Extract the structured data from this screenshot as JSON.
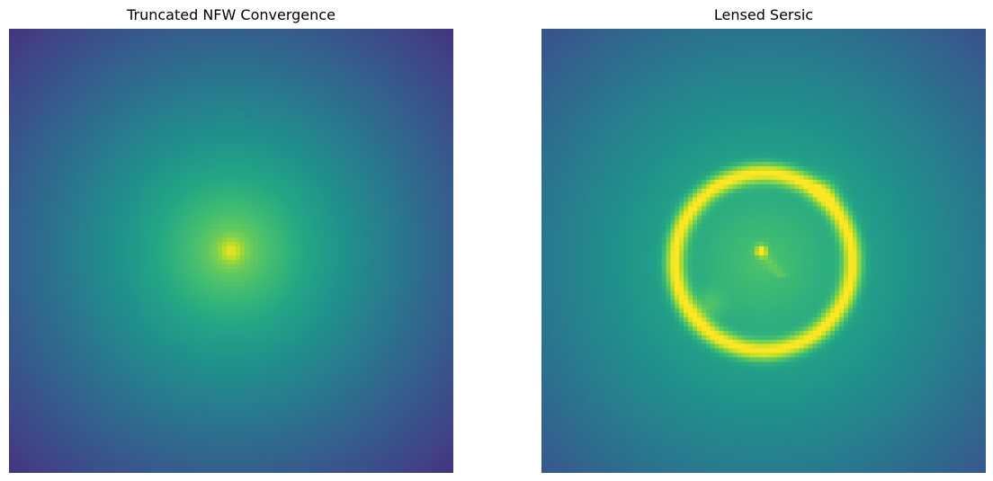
{
  "chart_data": [
    {
      "type": "heatmap",
      "title": "Truncated NFW Convergence",
      "colormap": "viridis",
      "axes_visible": false,
      "grid": false,
      "description_values": {
        "peak_location": "center",
        "profile": "radial falloff, brightest at center"
      }
    },
    {
      "type": "heatmap",
      "title": "Lensed Sersic",
      "colormap": "viridis",
      "axes_visible": false,
      "grid": false,
      "description_values": {
        "feature": "einstein ring around center with compact central spot",
        "profile": "bright ring, darker corners"
      }
    }
  ]
}
